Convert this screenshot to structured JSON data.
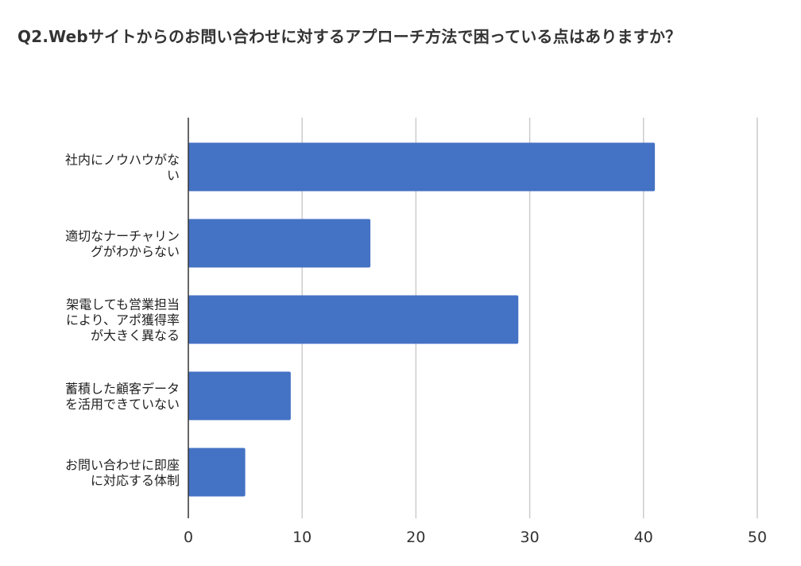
{
  "chart_data": {
    "type": "bar",
    "orientation": "horizontal",
    "title": "Q2.Webサイトからのお問い合わせに対するアプローチ方法で困っている点はありますか？",
    "categories": [
      [
        "社内にノウハウがな",
        "い"
      ],
      [
        "適切なナーチャリン",
        "グがわからない"
      ],
      [
        "架電しても営業担当",
        "により、アポ獲得率",
        "が大きく異なる"
      ],
      [
        "蓄積した顧客データ",
        "を活用できていない"
      ],
      [
        "お問い合わせに即座",
        "に対応する体制"
      ]
    ],
    "values": [
      41,
      16,
      29,
      9,
      5
    ],
    "xlim": [
      0,
      50
    ],
    "xticks": [
      0,
      10,
      20,
      30,
      40,
      50
    ],
    "xlabel": "",
    "ylabel": "",
    "grid": true,
    "legend": "none",
    "bar_color": "#4472c4",
    "grid_color": "#cccccc",
    "axis_color": "#333333"
  }
}
